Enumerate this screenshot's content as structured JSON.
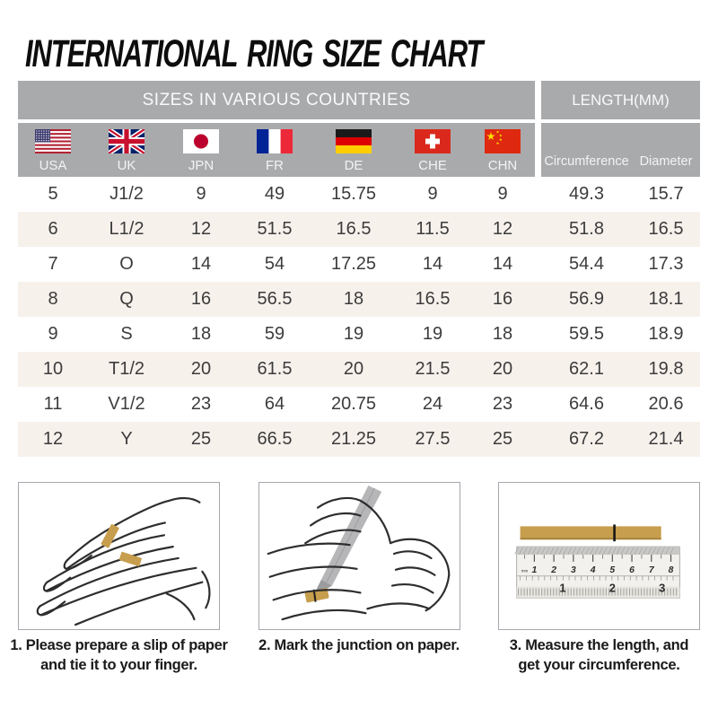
{
  "title": "INTERNATIONAL RING SIZE CHART",
  "table": {
    "sizes_header": "SIZES IN VARIOUS COUNTRIES",
    "length_header": "LENGTH(MM)",
    "countries": [
      {
        "code": "USA"
      },
      {
        "code": "UK"
      },
      {
        "code": "JPN"
      },
      {
        "code": "FR"
      },
      {
        "code": "DE"
      },
      {
        "code": "CHE"
      },
      {
        "code": "CHN"
      }
    ],
    "length_columns": {
      "circumference": "Circumference",
      "diameter": "Diameter"
    }
  },
  "chart_data": {
    "type": "table",
    "title": "INTERNATIONAL RING SIZE CHART",
    "column_groups": [
      "SIZES IN VARIOUS COUNTRIES",
      "LENGTH(MM)"
    ],
    "columns": [
      "USA",
      "UK",
      "JPN",
      "FR",
      "DE",
      "CHE",
      "CHN",
      "Circumference",
      "Diameter"
    ],
    "rows": [
      [
        "5",
        "J1/2",
        "9",
        "49",
        "15.75",
        "9",
        "9",
        "49.3",
        "15.7"
      ],
      [
        "6",
        "L1/2",
        "12",
        "51.5",
        "16.5",
        "11.5",
        "12",
        "51.8",
        "16.5"
      ],
      [
        "7",
        "O",
        "14",
        "54",
        "17.25",
        "14",
        "14",
        "54.4",
        "17.3"
      ],
      [
        "8",
        "Q",
        "16",
        "56.5",
        "18",
        "16.5",
        "16",
        "56.9",
        "18.1"
      ],
      [
        "9",
        "S",
        "18",
        "59",
        "19",
        "19",
        "18",
        "59.5",
        "18.9"
      ],
      [
        "10",
        "T1/2",
        "20",
        "61.5",
        "20",
        "21.5",
        "20",
        "62.1",
        "19.8"
      ],
      [
        "11",
        "V1/2",
        "23",
        "64",
        "20.75",
        "24",
        "23",
        "64.6",
        "20.6"
      ],
      [
        "12",
        "Y",
        "25",
        "66.5",
        "21.25",
        "27.5",
        "25",
        "67.2",
        "21.4"
      ]
    ]
  },
  "steps": [
    {
      "illustration": "hand-with-paper-slip-icon",
      "lines": [
        "1. Please prepare a slip of paper",
        "and tie it to your finger."
      ]
    },
    {
      "illustration": "mark-junction-pencil-icon",
      "lines": [
        "2. Mark the junction on paper."
      ]
    },
    {
      "illustration": "ruler-measure-icon",
      "lines": [
        "3. Measure the length, and",
        "get your circumference."
      ]
    }
  ],
  "ruler": {
    "cm_numbers": [
      "1",
      "2",
      "3",
      "4",
      "5",
      "6",
      "7",
      "8"
    ],
    "inch_numbers": [
      "1",
      "2",
      "3"
    ],
    "unit_label": "mm"
  },
  "colors": {
    "header_gray": "#a9aaac",
    "row_beige": "#f7f1ec",
    "paper_gold": "#c79e4d",
    "text_dark": "#3c3c3c"
  }
}
